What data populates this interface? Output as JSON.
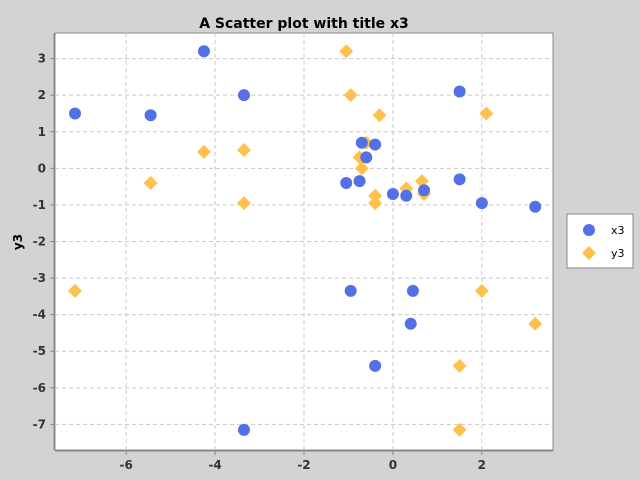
{
  "chart_data": {
    "type": "scatter",
    "title": "A Scatter plot with title x3",
    "xlabel": "",
    "ylabel": "y3",
    "xlim": [
      -7.6,
      3.6
    ],
    "ylim": [
      -7.7,
      3.7
    ],
    "xticks": [
      -6,
      -4,
      -2,
      0,
      2
    ],
    "yticks": [
      3,
      2,
      1,
      0,
      -1,
      -2,
      -3,
      -4,
      -5,
      -6,
      -7
    ],
    "grid": true,
    "legend_position": "right",
    "series": [
      {
        "name": "x3",
        "marker": "circle",
        "color": "#5470e6",
        "points": [
          [
            -7.15,
            1.5
          ],
          [
            -5.45,
            1.45
          ],
          [
            -4.25,
            3.2
          ],
          [
            -3.35,
            2.0
          ],
          [
            -3.35,
            -7.15
          ],
          [
            -1.05,
            -0.4
          ],
          [
            -0.95,
            -3.35
          ],
          [
            -0.75,
            -0.35
          ],
          [
            -0.7,
            0.7
          ],
          [
            -0.6,
            0.3
          ],
          [
            -0.4,
            0.65
          ],
          [
            -0.4,
            -5.4
          ],
          [
            0.0,
            -0.7
          ],
          [
            0.3,
            -0.75
          ],
          [
            0.45,
            -3.35
          ],
          [
            0.4,
            -4.25
          ],
          [
            0.7,
            -0.6
          ],
          [
            1.5,
            -0.3
          ],
          [
            1.5,
            2.1
          ],
          [
            2.0,
            -0.95
          ],
          [
            3.2,
            -1.05
          ]
        ]
      },
      {
        "name": "y3",
        "marker": "diamond",
        "color": "#ffc14d",
        "points": [
          [
            -7.15,
            -3.35
          ],
          [
            -5.45,
            -0.4
          ],
          [
            -4.25,
            0.45
          ],
          [
            -3.35,
            0.5
          ],
          [
            -3.35,
            -0.95
          ],
          [
            -1.05,
            3.2
          ],
          [
            -0.95,
            2.0
          ],
          [
            -0.75,
            0.3
          ],
          [
            -0.7,
            0.0
          ],
          [
            -0.6,
            0.7
          ],
          [
            -0.4,
            -0.95
          ],
          [
            -0.4,
            -0.75
          ],
          [
            -0.3,
            1.45
          ],
          [
            0.3,
            -0.55
          ],
          [
            0.65,
            -0.35
          ],
          [
            0.7,
            -0.7
          ],
          [
            1.5,
            -5.4
          ],
          [
            1.5,
            -7.15
          ],
          [
            2.0,
            -3.35
          ],
          [
            2.1,
            1.5
          ],
          [
            3.2,
            -4.25
          ]
        ]
      }
    ]
  }
}
